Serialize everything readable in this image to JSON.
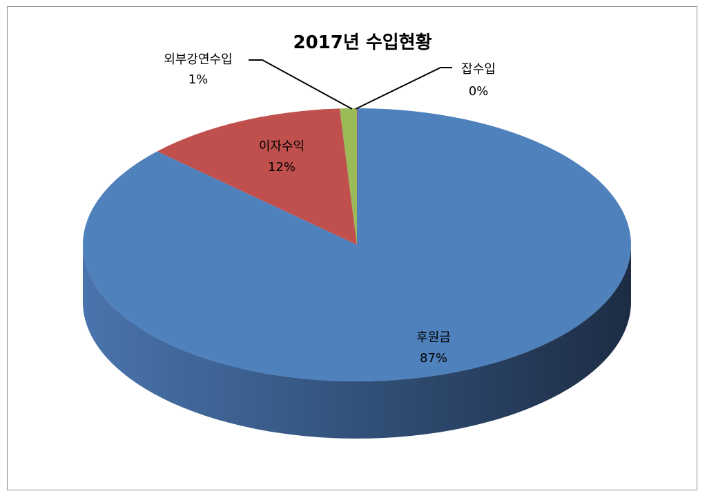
{
  "chart_data": {
    "type": "pie",
    "title": "2017년 수입현황",
    "slices": [
      {
        "label": "후원금",
        "value": 87,
        "value_label": "87%",
        "color": "#4f81bd"
      },
      {
        "label": "이자수익",
        "value": 12,
        "value_label": "12%",
        "color": "#c0504d"
      },
      {
        "label": "외부강연수입",
        "value": 1,
        "value_label": "1%",
        "color": "#9bbb59"
      },
      {
        "label": "잡수입",
        "value": 0,
        "value_label": "0%",
        "color": "#8064a2"
      }
    ],
    "style": "3d-pie",
    "legend": "none"
  }
}
